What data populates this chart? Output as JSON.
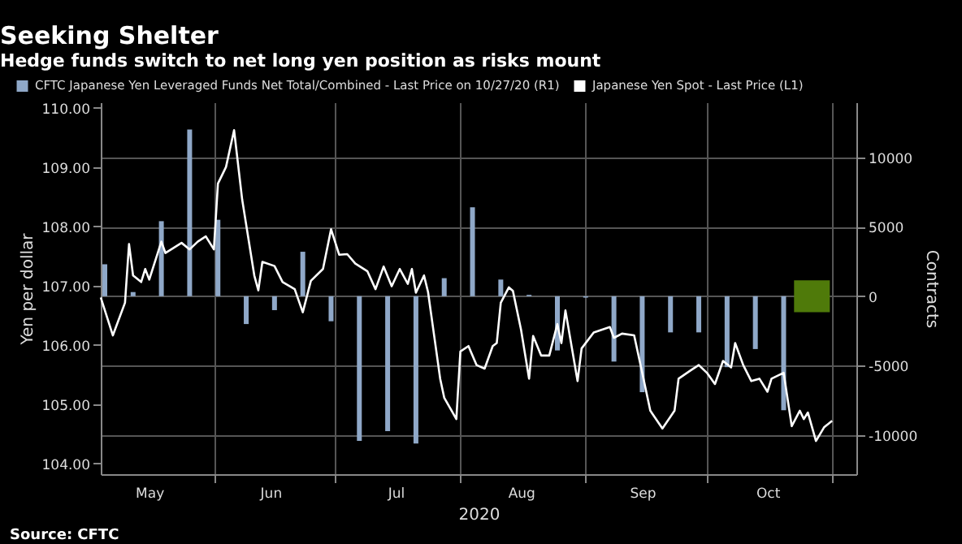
{
  "chart_data": {
    "type": "bar",
    "title": "Seeking Shelter",
    "subtitle": "Hedge funds switch to net long yen position as risks mount",
    "xlabel": "2020",
    "ylabel": "Yen per dollar",
    "y2label": "Contracts",
    "annotations": [
      "Source: CFTC"
    ],
    "xlim": [
      "2020-05-04",
      "2020-11-07"
    ],
    "xticks": [
      {
        "value": "2020-05-16",
        "label": "May"
      },
      {
        "value": "2020-06-01",
        "label": null
      },
      {
        "value": "2020-06-15",
        "label": "Jun"
      },
      {
        "value": "2020-07-01",
        "label": null
      },
      {
        "value": "2020-07-16",
        "label": "Jul"
      },
      {
        "value": "2020-08-01",
        "label": null
      },
      {
        "value": "2020-08-16",
        "label": "Aug"
      },
      {
        "value": "2020-09-01",
        "label": null
      },
      {
        "value": "2020-09-15",
        "label": "Sep"
      },
      {
        "value": "2020-10-01",
        "label": null
      },
      {
        "value": "2020-10-16",
        "label": "Oct"
      },
      {
        "value": "2020-11-01",
        "label": null
      }
    ],
    "ylim": [
      103.82,
      110.09
    ],
    "yticks": [
      {
        "value": 104,
        "label": "104.00"
      },
      {
        "value": 105,
        "label": "105.00"
      },
      {
        "value": 106,
        "label": "106.00"
      },
      {
        "value": 107,
        "label": "107.00"
      },
      {
        "value": 108,
        "label": "108.00"
      },
      {
        "value": 109,
        "label": "109.00"
      },
      {
        "value": 110,
        "label": "110.00"
      }
    ],
    "y2lim": [
      -12800,
      13950
    ],
    "y2ticks": [
      -10000,
      -5000,
      0,
      5000,
      10000
    ],
    "grid": true,
    "legend": "top left",
    "series": [
      {
        "name": "CFTC Japanese Yen Leveraged Funds Net Total/Combined - Last Price on 10/27/20 (R1)",
        "type": "bar",
        "axis": "y2",
        "color": "#8fa8c8",
        "x": [
          "2020-05-05",
          "2020-05-12",
          "2020-05-19",
          "2020-05-26",
          "2020-06-02",
          "2020-06-09",
          "2020-06-16",
          "2020-06-23",
          "2020-06-30",
          "2020-07-07",
          "2020-07-14",
          "2020-07-21",
          "2020-07-28",
          "2020-08-04",
          "2020-08-11",
          "2020-08-18",
          "2020-08-25",
          "2020-09-01",
          "2020-09-08",
          "2020-09-15",
          "2020-09-22",
          "2020-09-29",
          "2020-10-06",
          "2020-10-13",
          "2020-10-20"
        ],
        "values": [
          2300,
          300,
          5400,
          12000,
          5500,
          -2000,
          -1000,
          3200,
          -1800,
          -10400,
          -9700,
          -10600,
          1300,
          6400,
          1200,
          100,
          -3900,
          -100,
          -4700,
          -6900,
          -2600,
          -2600,
          -5100,
          -3800,
          -8200
        ]
      },
      {
        "name": "Japanese Yen Spot - Last Price (L1)",
        "type": "line",
        "color": "#ffffff",
        "x": [
          "2020-05-04",
          "2020-05-07",
          "2020-05-10",
          "2020-05-11",
          "2020-05-12",
          "2020-05-14",
          "2020-05-15",
          "2020-05-16",
          "2020-05-19",
          "2020-05-20",
          "2020-05-24",
          "2020-05-26",
          "2020-05-28",
          "2020-05-30",
          "2020-06-01",
          "2020-06-02",
          "2020-06-04",
          "2020-06-06",
          "2020-06-08",
          "2020-06-11",
          "2020-06-12",
          "2020-06-13",
          "2020-06-16",
          "2020-06-18",
          "2020-06-21",
          "2020-06-23",
          "2020-06-25",
          "2020-06-28",
          "2020-06-30",
          "2020-07-02",
          "2020-07-04",
          "2020-07-06",
          "2020-07-09",
          "2020-07-11",
          "2020-07-13",
          "2020-07-15",
          "2020-07-17",
          "2020-07-19",
          "2020-07-20",
          "2020-07-21",
          "2020-07-23",
          "2020-07-24",
          "2020-07-27",
          "2020-07-28",
          "2020-07-31",
          "2020-08-01",
          "2020-08-03",
          "2020-08-05",
          "2020-08-07",
          "2020-08-09",
          "2020-08-10",
          "2020-08-11",
          "2020-08-13",
          "2020-08-14",
          "2020-08-16",
          "2020-08-18",
          "2020-08-19",
          "2020-08-21",
          "2020-08-23",
          "2020-08-25",
          "2020-08-26",
          "2020-08-27",
          "2020-08-30",
          "2020-08-31",
          "2020-09-03",
          "2020-09-07",
          "2020-09-08",
          "2020-09-10",
          "2020-09-13",
          "2020-09-15",
          "2020-09-17",
          "2020-09-20",
          "2020-09-23",
          "2020-09-24",
          "2020-09-27",
          "2020-09-29",
          "2020-10-01",
          "2020-10-03",
          "2020-10-05",
          "2020-10-07",
          "2020-10-08",
          "2020-10-10",
          "2020-10-12",
          "2020-10-14",
          "2020-10-16",
          "2020-10-17",
          "2020-10-20",
          "2020-10-22",
          "2020-10-24",
          "2020-10-25",
          "2020-10-26",
          "2020-10-28",
          "2020-10-30",
          "2020-11-01"
        ],
        "values": [
          106.8,
          106.16,
          106.71,
          107.7,
          107.17,
          107.06,
          107.28,
          107.1,
          107.74,
          107.55,
          107.72,
          107.61,
          107.74,
          107.83,
          107.61,
          108.72,
          109.0,
          109.62,
          108.45,
          107.17,
          106.92,
          107.4,
          107.33,
          107.06,
          106.94,
          106.55,
          107.08,
          107.28,
          107.95,
          107.52,
          107.53,
          107.37,
          107.24,
          106.94,
          107.32,
          106.99,
          107.28,
          107.03,
          107.28,
          106.88,
          107.17,
          106.89,
          105.43,
          105.11,
          104.75,
          105.89,
          105.98,
          105.66,
          105.6,
          105.98,
          106.03,
          106.71,
          106.97,
          106.91,
          106.26,
          105.43,
          106.15,
          105.82,
          105.82,
          106.35,
          106.03,
          106.58,
          105.39,
          105.94,
          106.21,
          106.3,
          106.12,
          106.19,
          106.16,
          105.53,
          104.89,
          104.59,
          104.89,
          105.43,
          105.57,
          105.66,
          105.53,
          105.34,
          105.73,
          105.62,
          106.03,
          105.66,
          105.39,
          105.43,
          105.21,
          105.43,
          105.53,
          104.63,
          104.89,
          104.75,
          104.86,
          104.38,
          104.61,
          104.72
        ]
      },
      {
        "axis": "y2",
        "color": "#4f7a0a",
        "x": [
          "2020-10-27"
        ],
        "base": [
          -1150
        ],
        "values": [
          2300
        ]
      }
    ]
  }
}
